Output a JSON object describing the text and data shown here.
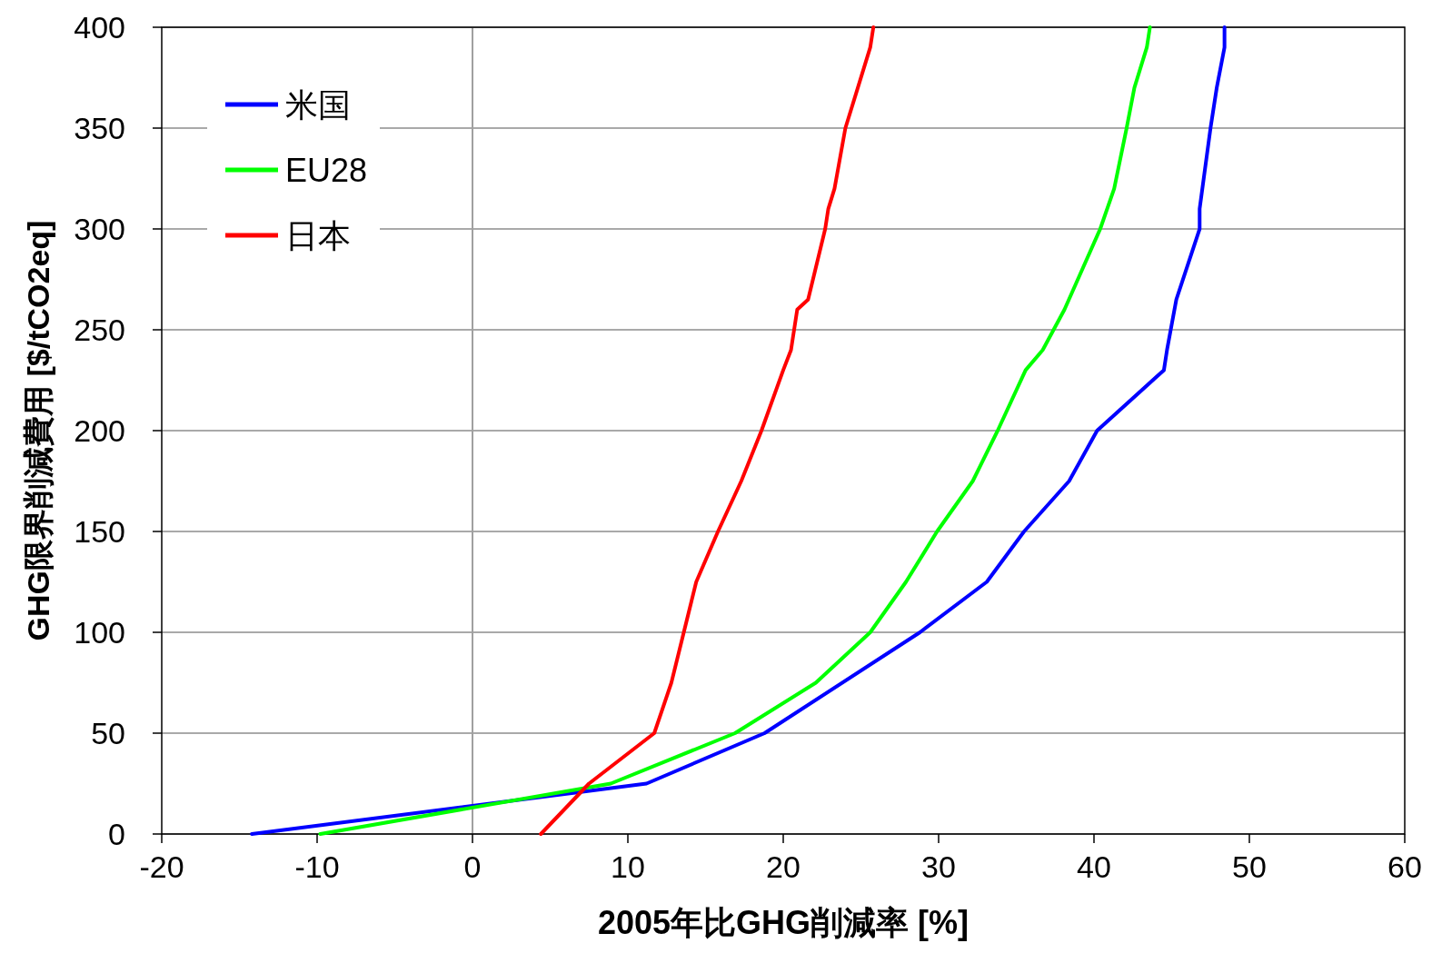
{
  "chart_data": {
    "type": "line",
    "xlabel": "2005年比GHG削減率 [%]",
    "ylabel": "GHG限界削減費用 [$/tCO2eq]",
    "xlim": [
      -20,
      60
    ],
    "xticks": [
      -20,
      -10,
      0,
      10,
      20,
      30,
      40,
      50,
      60
    ],
    "ylim": [
      0,
      400
    ],
    "yticks": [
      0,
      50,
      100,
      150,
      200,
      250,
      300,
      350,
      400
    ],
    "grid": "y",
    "legend": "top left",
    "marker": "none",
    "line_style": "solid",
    "ref_lines": [
      {
        "axis": "x",
        "value": 0,
        "color": "#a0a0a0"
      }
    ],
    "series": [
      {
        "name": "米国",
        "color": "#0000ff",
        "x": [
          -14.2,
          11.2,
          18.8,
          28.8,
          33.1,
          35.5,
          38.4,
          40.2,
          44.5,
          44.7,
          45.3,
          46.8,
          46.8,
          47.5,
          47.9,
          48.4,
          48.4
        ],
        "values": [
          0,
          25,
          50,
          100,
          125,
          150,
          175,
          200,
          230,
          240,
          265,
          300,
          310,
          350,
          370,
          390,
          400
        ]
      },
      {
        "name": "EU28",
        "color": "#00ff00",
        "x": [
          -9.8,
          8.9,
          16.9,
          22.1,
          25.6,
          27.9,
          29.9,
          32.2,
          33.8,
          35.6,
          36.7,
          38.1,
          40.4,
          41.3,
          42.1,
          42.6,
          43.4,
          43.6
        ],
        "values": [
          0,
          25,
          50,
          75,
          100,
          125,
          150,
          175,
          200,
          230,
          240,
          260,
          300,
          320,
          350,
          370,
          390,
          400
        ]
      },
      {
        "name": "日本",
        "color": "#ff0000",
        "x": [
          4.4,
          7.5,
          11.7,
          12.8,
          13.6,
          14.4,
          15.8,
          17.3,
          18.6,
          20.0,
          20.5,
          20.9,
          21.6,
          22.7,
          22.9,
          23.3,
          24.0,
          24.8,
          25.6,
          25.8
        ],
        "values": [
          0,
          25,
          50,
          75,
          100,
          125,
          150,
          175,
          200,
          230,
          240,
          260,
          265,
          300,
          310,
          320,
          350,
          370,
          390,
          400
        ]
      }
    ]
  }
}
